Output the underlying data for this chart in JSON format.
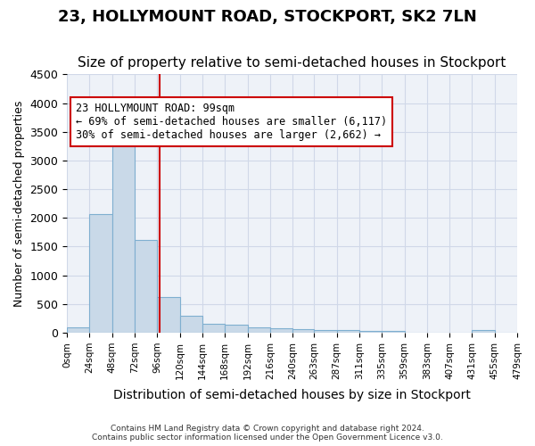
{
  "title": "23, HOLLYMOUNT ROAD, STOCKPORT, SK2 7LN",
  "subtitle": "Size of property relative to semi-detached houses in Stockport",
  "xlabel": "Distribution of semi-detached houses by size in Stockport",
  "ylabel": "Number of semi-detached properties",
  "footer_line1": "Contains HM Land Registry data © Crown copyright and database right 2024.",
  "footer_line2": "Contains public sector information licensed under the Open Government Licence v3.0.",
  "bar_edges": [
    0,
    24,
    48,
    72,
    96,
    120,
    144,
    168,
    192,
    216,
    240,
    263,
    287,
    311,
    335,
    359,
    383,
    407,
    431,
    455,
    479
  ],
  "bar_heights": [
    90,
    2070,
    3760,
    1620,
    620,
    300,
    150,
    145,
    100,
    80,
    60,
    50,
    40,
    35,
    30,
    5,
    0,
    0,
    45,
    0
  ],
  "bar_color": "#c9d9e8",
  "bar_edgecolor": "#7fafd0",
  "property_size": 99,
  "property_line_color": "#cc0000",
  "annotation_text": "23 HOLLYMOUNT ROAD: 99sqm\n← 69% of semi-detached houses are smaller (6,117)\n30% of semi-detached houses are larger (2,662) →",
  "annotation_box_edgecolor": "#cc0000",
  "annotation_box_facecolor": "#ffffff",
  "ylim": [
    0,
    4500
  ],
  "yticks": [
    0,
    500,
    1000,
    1500,
    2000,
    2500,
    3000,
    3500,
    4000,
    4500
  ],
  "xtick_labels": [
    "0sqm",
    "24sqm",
    "48sqm",
    "72sqm",
    "96sqm",
    "120sqm",
    "144sqm",
    "168sqm",
    "192sqm",
    "216sqm",
    "240sqm",
    "263sqm",
    "287sqm",
    "311sqm",
    "335sqm",
    "359sqm",
    "383sqm",
    "407sqm",
    "431sqm",
    "455sqm",
    "479sqm"
  ],
  "grid_color": "#d0d8e8",
  "background_color": "#eef2f8",
  "title_fontsize": 13,
  "subtitle_fontsize": 11
}
